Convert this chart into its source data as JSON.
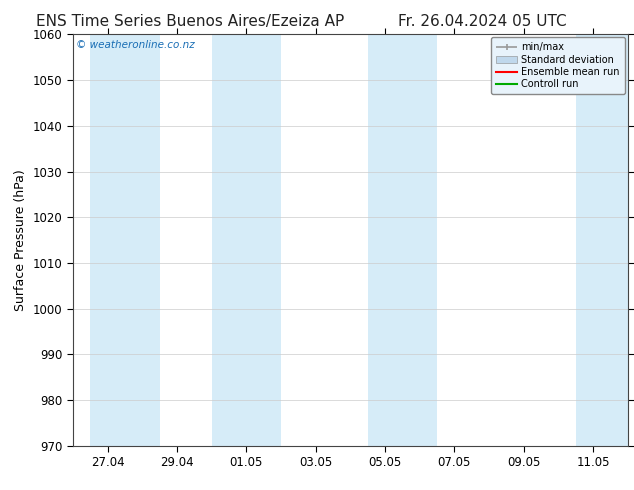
{
  "title_left": "ENS Time Series Buenos Aires/Ezeiza AP",
  "title_right": "Fr. 26.04.2024 05 UTC",
  "ylabel": "Surface Pressure (hPa)",
  "ylim": [
    970,
    1060
  ],
  "yticks": [
    970,
    980,
    990,
    1000,
    1010,
    1020,
    1030,
    1040,
    1050,
    1060
  ],
  "x_tick_labels": [
    "27.04",
    "29.04",
    "01.05",
    "03.05",
    "05.05",
    "07.05",
    "09.05",
    "11.05"
  ],
  "x_tick_positions": [
    1,
    3,
    5,
    7,
    9,
    11,
    13,
    15
  ],
  "x_min": 0,
  "x_max": 16,
  "shaded_bands": [
    {
      "x_start": 0.5,
      "x_end": 2.5,
      "color": "#d6ecf8"
    },
    {
      "x_start": 4.0,
      "x_end": 6.0,
      "color": "#d6ecf8"
    },
    {
      "x_start": 8.5,
      "x_end": 10.5,
      "color": "#d6ecf8"
    },
    {
      "x_start": 14.5,
      "x_end": 16.0,
      "color": "#d6ecf8"
    }
  ],
  "background_color": "#ffffff",
  "plot_bg_color": "#ffffff",
  "watermark_text": "© weatheronline.co.nz",
  "watermark_color": "#1a6eb5",
  "legend_entries": [
    "min/max",
    "Standard deviation",
    "Ensemble mean run",
    "Controll run"
  ],
  "legend_line_colors": [
    "#999999",
    "#c0d8ec",
    "#ff0000",
    "#00aa00"
  ],
  "title_fontsize": 11,
  "axis_label_fontsize": 9,
  "tick_fontsize": 8.5
}
